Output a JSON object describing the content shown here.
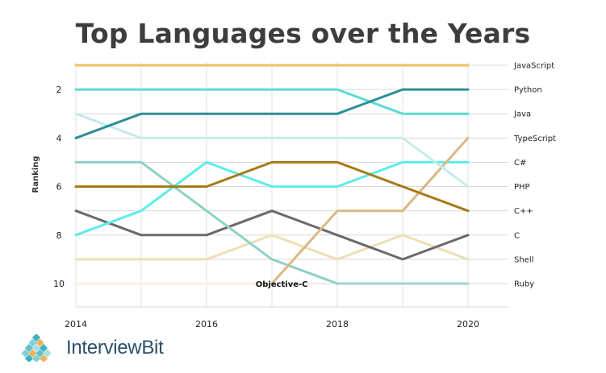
{
  "title": "Top Languages over the Years",
  "brand": "InterviewBit",
  "chart_data": {
    "type": "line",
    "title": "Top Languages over the Years",
    "ylabel": "Ranking",
    "xlabel": "",
    "x": [
      2014,
      2015,
      2016,
      2017,
      2018,
      2019,
      2020
    ],
    "x_ticks": [
      "2014",
      "2016",
      "2018",
      "2020"
    ],
    "y_ticks": [
      "2",
      "4",
      "6",
      "8",
      "10"
    ],
    "ylim": [
      1,
      10.9
    ],
    "y_inverted": true,
    "grid": true,
    "legend": "right-end labels",
    "annotations": [
      {
        "text": "Objective-C",
        "x": 2016.7,
        "y": 10
      }
    ],
    "series": [
      {
        "name": "Objective-C",
        "color": "#fdf1dc",
        "values": [
          10,
          10,
          10,
          10,
          null,
          null,
          null
        ]
      },
      {
        "name": "Ruby",
        "color": "#9ed6cc",
        "values": [
          null,
          null,
          null,
          null,
          10,
          10,
          10
        ]
      },
      {
        "name": "Shell",
        "color": "#eedfb5",
        "values": [
          9,
          9,
          9,
          8,
          9,
          8,
          9
        ]
      },
      {
        "name": "C",
        "color": "#6a6a6a",
        "values": [
          7,
          8,
          8,
          7,
          8,
          9,
          8
        ]
      },
      {
        "name": "C#",
        "color": "#8fd0c6",
        "values": [
          5,
          5,
          7,
          9,
          10,
          null,
          null
        ]
      },
      {
        "name": "PHP",
        "color": "#5ceceb",
        "values": [
          8,
          7,
          5,
          6,
          6,
          5,
          5
        ]
      },
      {
        "name": "TypeScript",
        "color": "#d9b886",
        "values": [
          null,
          null,
          null,
          10,
          7,
          7,
          4
        ]
      },
      {
        "name": "C++",
        "color": "#a57a14",
        "values": [
          6,
          6,
          6,
          5,
          5,
          6,
          7
        ]
      },
      {
        "name": "Java",
        "color": "#c5ebeb",
        "values": [
          3,
          4,
          4,
          4,
          4,
          4,
          6
        ]
      },
      {
        "name": "Python",
        "color": "#5cdad8",
        "values": [
          2,
          2,
          2,
          2,
          2,
          3,
          3
        ]
      },
      {
        "name": "JavaScript",
        "color": "#2d8f96",
        "values": [
          4,
          3,
          3,
          3,
          3,
          2,
          2
        ]
      },
      {
        "name": "",
        "color": "#f6be62",
        "values": [
          1,
          1,
          1,
          1,
          1,
          1,
          1
        ]
      }
    ],
    "right_labels": [
      "JavaScript",
      "Python",
      "Java",
      "TypeScript",
      "C#",
      "PHP",
      "C++",
      "C",
      "Shell",
      "Ruby"
    ]
  }
}
